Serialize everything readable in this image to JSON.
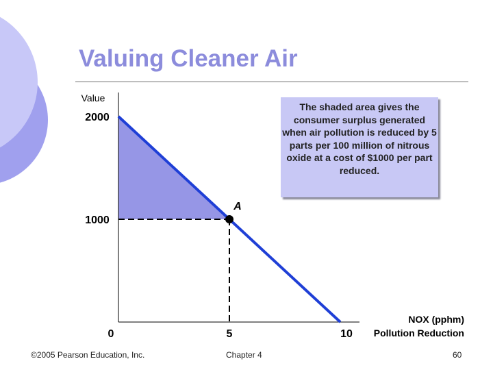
{
  "slide": {
    "title": "Valuing Cleaner Air",
    "callout": "The shaded area gives the consumer surplus generated when air pollution is reduced by 5 parts per 100 million of nitrous oxide at a cost of $1000 per part reduced.",
    "footer_left": "©2005 Pearson Education, Inc.",
    "footer_center": "Chapter 4",
    "footer_right": "60"
  },
  "colors": {
    "title": "#8c8cdc",
    "demand_line": "#1f3fd6",
    "shaded_area": "#9696e6",
    "callout_bg": "#c8c8f5",
    "decoration": "#a0a0ee"
  },
  "chart_data": {
    "type": "line",
    "title": "",
    "ylabel": "Value",
    "xlabel_line1": "NOX (pphm)",
    "xlabel_line2": "Pollution Reduction",
    "xlim": [
      0,
      10
    ],
    "ylim": [
      0,
      2000
    ],
    "x_ticks": [
      {
        "value": 0,
        "label": "0"
      },
      {
        "value": 5,
        "label": "5"
      },
      {
        "value": 10,
        "label": "10"
      }
    ],
    "y_ticks": [
      {
        "value": 1000,
        "label": "1000"
      },
      {
        "value": 2000,
        "label": "2000"
      }
    ],
    "series": [
      {
        "x": [
          0,
          10
        ],
        "y": [
          2000,
          0
        ]
      }
    ],
    "point": {
      "label": "A",
      "x": 5,
      "y": 1000
    },
    "shaded_region": [
      [
        0,
        2000
      ],
      [
        0,
        1000
      ],
      [
        5,
        1000
      ]
    ],
    "grid": false
  }
}
